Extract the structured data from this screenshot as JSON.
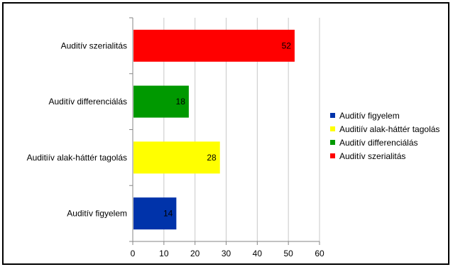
{
  "chart_data": {
    "type": "bar",
    "orientation": "horizontal",
    "categories": [
      "Auditív figyelem",
      "Auditiív alak-háttér tagolás",
      "Auditív differenciálás",
      "Auditív szerialitás"
    ],
    "values": [
      14,
      28,
      18,
      52
    ],
    "colors": [
      "#0033aa",
      "#ffff00",
      "#009900",
      "#ff0000"
    ],
    "xlim": [
      0,
      60
    ],
    "xticks": [
      0,
      10,
      20,
      30,
      40,
      50,
      60
    ],
    "grid": true,
    "legend": {
      "placement": "right",
      "entries": [
        "Auditív figyelem",
        "Auditiív alak-háttér tagolás",
        "Auditív differenciálás",
        "Auditív szerialitás"
      ]
    },
    "title": "",
    "xlabel": "",
    "ylabel": ""
  }
}
